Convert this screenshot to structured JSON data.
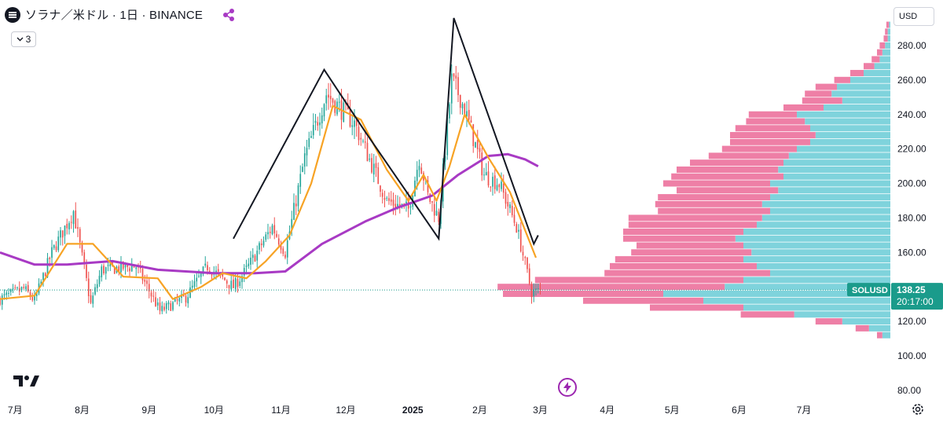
{
  "header": {
    "symbol_title": "ソラナ／米ドル · 1日 · BINANCE",
    "indicator_count": "3",
    "currency": "USD"
  },
  "colors": {
    "up": "#26a69a",
    "down": "#ef5350",
    "ma_fast": "#f7a325",
    "ma_slow": "#a83ac4",
    "trendline": "#131722",
    "vp_up": "#7fd3dc",
    "vp_down": "#ee7fa6",
    "price_tag": "#1a9b8b"
  },
  "chart_data": {
    "type": "candlestick",
    "title": "ソラナ／米ドル · 1日 · BINANCE",
    "ylim": [
      78,
      298
    ],
    "yticks": [
      "80.00",
      "100.00",
      "120.00",
      "140.00",
      "160.00",
      "180.00",
      "200.00",
      "220.00",
      "240.00",
      "260.00",
      "280.00"
    ],
    "xlim": [
      "2024-06-24",
      "2025-08-10"
    ],
    "xticks": [
      {
        "label": "7月",
        "date": "2024-07-01"
      },
      {
        "label": "8月",
        "date": "2024-08-01"
      },
      {
        "label": "9月",
        "date": "2024-09-01"
      },
      {
        "label": "10月",
        "date": "2024-10-01"
      },
      {
        "label": "11月",
        "date": "2024-11-01"
      },
      {
        "label": "12月",
        "date": "2024-12-01"
      },
      {
        "label": "2025",
        "date": "2025-01-01"
      },
      {
        "label": "2月",
        "date": "2025-02-01"
      },
      {
        "label": "3月",
        "date": "2025-03-01"
      },
      {
        "label": "4月",
        "date": "2025-04-01"
      },
      {
        "label": "5月",
        "date": "2025-05-01"
      },
      {
        "label": "6月",
        "date": "2025-06-01"
      },
      {
        "label": "7月",
        "date": "2025-07-01"
      }
    ],
    "price_anchors": [
      [
        "2024-06-24",
        133
      ],
      [
        "2024-07-05",
        139
      ],
      [
        "2024-07-10",
        132
      ],
      [
        "2024-07-18",
        160
      ],
      [
        "2024-07-28",
        184
      ],
      [
        "2024-08-05",
        130
      ],
      [
        "2024-08-10",
        150
      ],
      [
        "2024-08-26",
        152
      ],
      [
        "2024-09-06",
        126
      ],
      [
        "2024-09-18",
        134
      ],
      [
        "2024-09-28",
        152
      ],
      [
        "2024-10-10",
        140
      ],
      [
        "2024-10-16",
        150
      ],
      [
        "2024-10-28",
        175
      ],
      [
        "2024-11-03",
        160
      ],
      [
        "2024-11-12",
        215
      ],
      [
        "2024-11-22",
        252
      ],
      [
        "2024-12-05",
        235
      ],
      [
        "2024-12-10",
        220
      ],
      [
        "2024-12-20",
        190
      ],
      [
        "2024-12-30",
        185
      ],
      [
        "2025-01-04",
        215
      ],
      [
        "2025-01-08",
        193
      ],
      [
        "2025-01-13",
        180
      ],
      [
        "2025-01-19",
        260
      ],
      [
        "2025-01-23",
        250
      ],
      [
        "2025-01-27",
        235
      ],
      [
        "2025-02-03",
        205
      ],
      [
        "2025-02-10",
        200
      ],
      [
        "2025-02-18",
        175
      ],
      [
        "2025-02-25",
        137
      ],
      [
        "2025-03-01",
        138
      ]
    ],
    "ma_fast_anchors": [
      [
        "2024-06-24",
        133
      ],
      [
        "2024-07-10",
        135
      ],
      [
        "2024-07-25",
        165
      ],
      [
        "2024-08-06",
        165
      ],
      [
        "2024-08-20",
        146
      ],
      [
        "2024-09-05",
        145
      ],
      [
        "2024-09-12",
        133
      ],
      [
        "2024-09-25",
        140
      ],
      [
        "2024-10-05",
        148
      ],
      [
        "2024-10-16",
        145
      ],
      [
        "2024-10-25",
        155
      ],
      [
        "2024-11-05",
        170
      ],
      [
        "2024-11-15",
        200
      ],
      [
        "2024-11-25",
        245
      ],
      [
        "2024-12-08",
        237
      ],
      [
        "2024-12-20",
        208
      ],
      [
        "2024-12-30",
        190
      ],
      [
        "2025-01-06",
        205
      ],
      [
        "2025-01-12",
        190
      ],
      [
        "2025-01-18",
        210
      ],
      [
        "2025-01-25",
        240
      ],
      [
        "2025-02-05",
        215
      ],
      [
        "2025-02-15",
        195
      ],
      [
        "2025-02-27",
        157
      ]
    ],
    "ma_slow_anchors": [
      [
        "2024-06-24",
        160
      ],
      [
        "2024-07-10",
        153
      ],
      [
        "2024-07-25",
        153
      ],
      [
        "2024-08-15",
        155
      ],
      [
        "2024-09-05",
        150
      ],
      [
        "2024-10-01",
        148
      ],
      [
        "2024-10-20",
        148
      ],
      [
        "2024-11-03",
        149
      ],
      [
        "2024-11-20",
        165
      ],
      [
        "2024-12-10",
        178
      ],
      [
        "2024-12-25",
        186
      ],
      [
        "2025-01-10",
        193
      ],
      [
        "2025-01-22",
        205
      ],
      [
        "2025-02-05",
        216
      ],
      [
        "2025-02-14",
        217
      ],
      [
        "2025-02-22",
        214
      ],
      [
        "2025-02-28",
        210
      ]
    ],
    "trendlines": [
      [
        [
          "2024-10-10",
          168
        ],
        [
          "2024-11-21",
          266
        ],
        [
          "2024-12-10",
          230
        ],
        [
          "2025-01-13",
          168
        ],
        [
          "2025-01-20",
          296
        ],
        [
          "2025-02-26",
          165
        ],
        [
          "2025-02-28",
          170
        ]
      ]
    ],
    "volume_profile": [
      [
        112,
        0.03,
        0.02
      ],
      [
        116,
        0.08,
        0.05
      ],
      [
        120,
        0.18,
        0.1
      ],
      [
        124,
        0.36,
        0.2
      ],
      [
        128,
        0.55,
        0.35
      ],
      [
        132,
        0.7,
        0.45
      ],
      [
        136,
        0.85,
        0.6
      ],
      [
        140,
        0.62,
        0.85
      ],
      [
        144,
        0.55,
        0.78
      ],
      [
        148,
        0.45,
        0.62
      ],
      [
        152,
        0.5,
        0.55
      ],
      [
        156,
        0.55,
        0.48
      ],
      [
        160,
        0.52,
        0.45
      ],
      [
        164,
        0.55,
        0.4
      ],
      [
        168,
        0.58,
        0.42
      ],
      [
        172,
        0.55,
        0.45
      ],
      [
        176,
        0.5,
        0.48
      ],
      [
        180,
        0.48,
        0.5
      ],
      [
        184,
        0.45,
        0.42
      ],
      [
        188,
        0.48,
        0.4
      ],
      [
        192,
        0.45,
        0.42
      ],
      [
        196,
        0.42,
        0.38
      ],
      [
        200,
        0.45,
        0.4
      ],
      [
        204,
        0.4,
        0.42
      ],
      [
        208,
        0.42,
        0.38
      ],
      [
        212,
        0.4,
        0.35
      ],
      [
        216,
        0.38,
        0.3
      ],
      [
        220,
        0.35,
        0.28
      ],
      [
        224,
        0.3,
        0.3
      ],
      [
        228,
        0.28,
        0.32
      ],
      [
        232,
        0.3,
        0.28
      ],
      [
        236,
        0.32,
        0.22
      ],
      [
        240,
        0.35,
        0.18
      ],
      [
        244,
        0.25,
        0.15
      ],
      [
        248,
        0.18,
        0.15
      ],
      [
        252,
        0.22,
        0.1
      ],
      [
        256,
        0.2,
        0.08
      ],
      [
        260,
        0.15,
        0.06
      ],
      [
        264,
        0.1,
        0.05
      ],
      [
        268,
        0.06,
        0.04
      ],
      [
        272,
        0.04,
        0.03
      ],
      [
        276,
        0.03,
        0.02
      ],
      [
        280,
        0.02,
        0.02
      ],
      [
        284,
        0.01,
        0.015
      ],
      [
        288,
        0.01,
        0.01
      ],
      [
        292,
        0.005,
        0.01
      ]
    ],
    "last_price": {
      "label": "SOLUSD",
      "value": "138.25",
      "countdown": "20:17:00",
      "price": 138.25
    }
  }
}
